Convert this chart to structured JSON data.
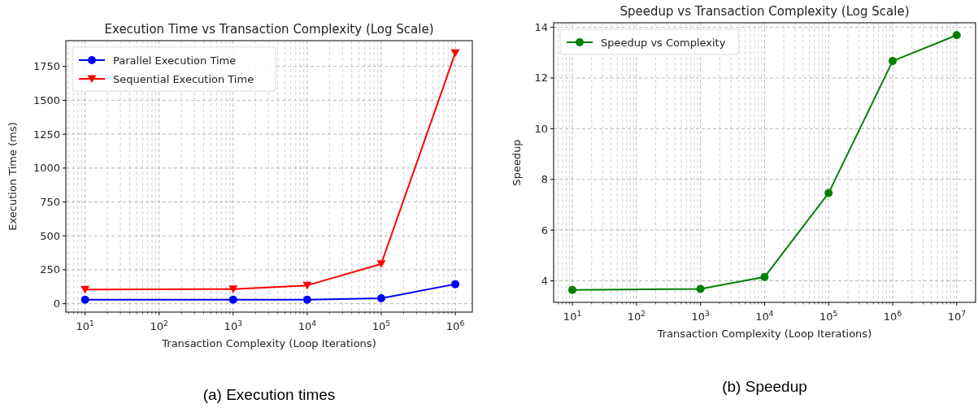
{
  "chart_data": [
    {
      "type": "line",
      "title": "Execution Time vs Transaction Complexity (Log Scale)",
      "xlabel": "Transaction Complexity (Loop Iterations)",
      "ylabel": "Execution Time (ms)",
      "log": "x",
      "grid": true,
      "legend": "top left",
      "x": [
        10,
        1000,
        10000,
        100000,
        1000000
      ],
      "series": [
        {
          "name": "Parallel Execution Time",
          "color": "#0000ff",
          "marker": "circle",
          "values": [
            29,
            30,
            30,
            40,
            144
          ]
        },
        {
          "name": "Sequential Execution Time",
          "color": "#ff0000",
          "marker": "triangle",
          "values": [
            104,
            108,
            135,
            293,
            1849
          ]
        }
      ],
      "xlim": [
        5.5,
        1700000
      ],
      "xticks": [
        {
          "value": 10,
          "label": "10$^{1}$"
        },
        {
          "value": 100,
          "label": "10$^{2}$"
        },
        {
          "value": 1000,
          "label": "10$^{3}$"
        },
        {
          "value": 10000,
          "label": "10$^{4}$"
        },
        {
          "value": 100000,
          "label": "10$^{5}$"
        },
        {
          "value": 1000000,
          "label": "10$^{6}$"
        }
      ],
      "ylim": [
        -62,
        1940
      ],
      "yticks": [
        0,
        250,
        500,
        750,
        1000,
        1250,
        1500,
        1750
      ],
      "annotations": [
        "(a) Execution times"
      ]
    },
    {
      "type": "line",
      "title": "Speedup vs Transaction Complexity (Log Scale)",
      "xlabel": "Transaction Complexity (Loop Iterations)",
      "ylabel": "Speedup",
      "log": "x",
      "grid": true,
      "legend": "top left",
      "x": [
        10,
        1000,
        10000,
        100000,
        1000000,
        10000000
      ],
      "series": [
        {
          "name": "Speedup vs Complexity",
          "color": "#008000",
          "marker": "circle",
          "values": [
            3.64,
            3.68,
            4.15,
            7.46,
            12.67,
            13.69
          ]
        }
      ],
      "xlim": [
        5.1,
        19700000
      ],
      "xticks": [
        {
          "value": 10,
          "label": "10$^{1}$"
        },
        {
          "value": 100,
          "label": "10$^{2}$"
        },
        {
          "value": 1000,
          "label": "10$^{3}$"
        },
        {
          "value": 10000,
          "label": "10$^{4}$"
        },
        {
          "value": 100000,
          "label": "10$^{5}$"
        },
        {
          "value": 1000000,
          "label": "10$^{6}$"
        },
        {
          "value": 10000000,
          "label": "10$^{7}$"
        }
      ],
      "ylim": [
        3.15,
        14.18
      ],
      "yticks": [
        4,
        6,
        8,
        10,
        12,
        14
      ],
      "annotations": [
        "(b) Speedup"
      ]
    }
  ]
}
